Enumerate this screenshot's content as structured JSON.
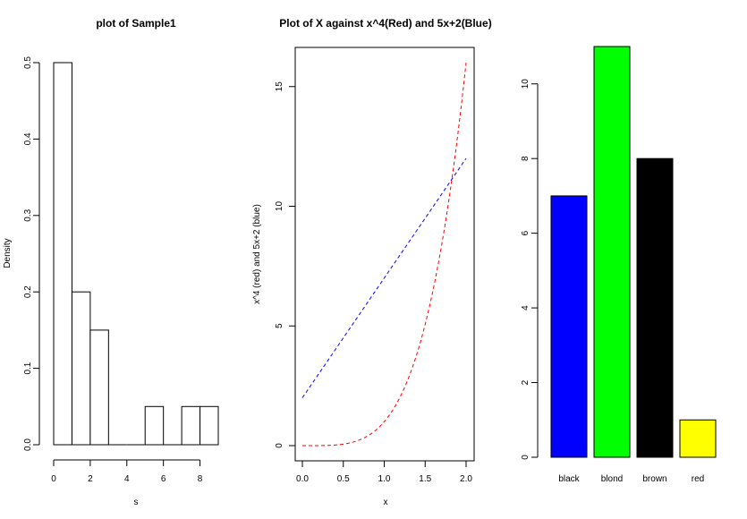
{
  "chart_data": [
    {
      "type": "bar",
      "subtype": "histogram",
      "title": "plot of Sample1",
      "xlabel": "s",
      "ylabel": "Density",
      "bins": [
        [
          0,
          1
        ],
        [
          1,
          2
        ],
        [
          2,
          3
        ],
        [
          3,
          4
        ],
        [
          4,
          5
        ],
        [
          5,
          6
        ],
        [
          6,
          7
        ],
        [
          7,
          8
        ],
        [
          8,
          9
        ]
      ],
      "values": [
        0.5,
        0.2,
        0.15,
        0,
        0,
        0.05,
        0,
        0.05,
        0.05
      ],
      "xlim": [
        0,
        9
      ],
      "ylim": [
        0,
        0.5
      ],
      "xticks": [
        "0",
        "2",
        "4",
        "6",
        "8"
      ],
      "yticks": [
        "0.0",
        "0.1",
        "0.2",
        "0.3",
        "0.4",
        "0.5"
      ],
      "bar_fill": "#ffffff",
      "bar_stroke": "#000000",
      "grid": false
    },
    {
      "type": "line",
      "title": "Plot of X against x^4(Red) and 5x+2(Blue)",
      "xlabel": "x",
      "ylabel": "x^4 (red) and 5x+2 (blue)",
      "xlim": [
        0,
        2
      ],
      "ylim": [
        0,
        16
      ],
      "xticks": [
        "0.0",
        "0.5",
        "1.0",
        "1.5",
        "2.0"
      ],
      "yticks": [
        "0",
        "5",
        "10",
        "15"
      ],
      "series": [
        {
          "function": "x^4",
          "color": "#ff0000",
          "style": "dashed",
          "x_range": [
            0,
            2
          ]
        },
        {
          "function": "5x+2",
          "color": "#0000ff",
          "style": "dashed",
          "x_range": [
            0,
            2
          ]
        }
      ],
      "grid": false
    },
    {
      "type": "bar",
      "categories": [
        "black",
        "blond",
        "brown",
        "red"
      ],
      "values": [
        7,
        11,
        8,
        1
      ],
      "colors": [
        "#0000ff",
        "#00ff00",
        "#000000",
        "#ffff00"
      ],
      "ylim": [
        0,
        11
      ],
      "yticks": [
        "0",
        "2",
        "4",
        "6",
        "8",
        "10"
      ],
      "grid": false
    }
  ]
}
